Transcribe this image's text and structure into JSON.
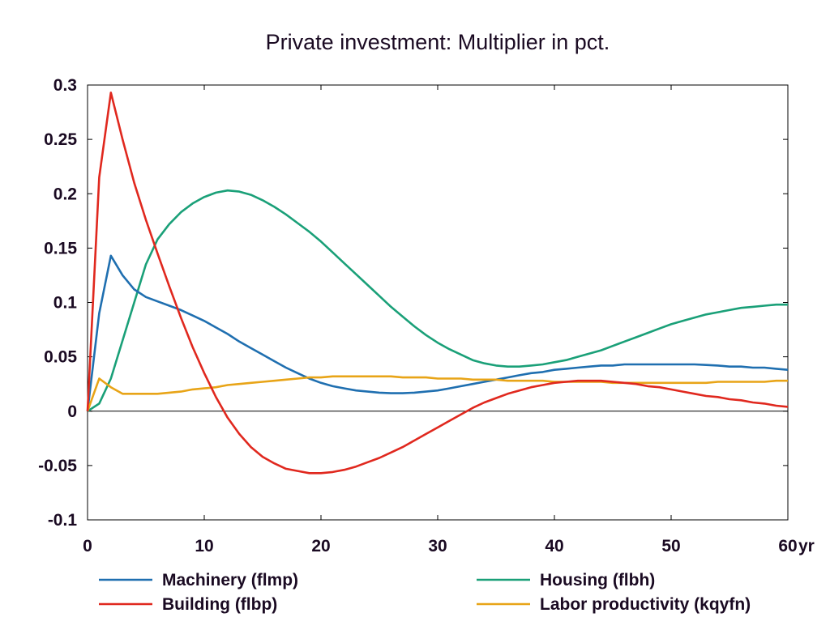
{
  "chart_data": {
    "type": "line",
    "title": "Private investment: Multiplier in pct.",
    "xlabel": "",
    "ylabel": "",
    "x_unit": "yr",
    "xlim": [
      0,
      60
    ],
    "ylim": [
      -0.1,
      0.3
    ],
    "x_ticks": [
      "0",
      "10",
      "20",
      "30",
      "40",
      "50",
      "60"
    ],
    "y_ticks": [
      "0.3",
      "0.25",
      "0.2",
      "0.15",
      "0.1",
      "0.05",
      "0",
      "-0.05",
      "-0.1"
    ],
    "grid": false,
    "legend_position": "bottom",
    "x": [
      0,
      1,
      2,
      3,
      4,
      5,
      6,
      7,
      8,
      9,
      10,
      11,
      12,
      13,
      14,
      15,
      16,
      17,
      18,
      19,
      20,
      21,
      22,
      23,
      24,
      25,
      26,
      27,
      28,
      29,
      30,
      31,
      32,
      33,
      34,
      35,
      36,
      37,
      38,
      39,
      40,
      41,
      42,
      43,
      44,
      45,
      46,
      47,
      48,
      49,
      50,
      51,
      52,
      53,
      54,
      55,
      56,
      57,
      58,
      59,
      60
    ],
    "series": [
      {
        "name": "Machinery (flmp)",
        "color": "#1f6fb0",
        "values": [
          0,
          0.09,
          0.143,
          0.125,
          0.112,
          0.105,
          0.101,
          0.097,
          0.093,
          0.088,
          0.083,
          0.077,
          0.071,
          0.064,
          0.058,
          0.052,
          0.046,
          0.04,
          0.035,
          0.03,
          0.026,
          0.023,
          0.021,
          0.019,
          0.018,
          0.017,
          0.0165,
          0.0165,
          0.017,
          0.018,
          0.019,
          0.021,
          0.023,
          0.025,
          0.027,
          0.029,
          0.031,
          0.033,
          0.035,
          0.036,
          0.038,
          0.039,
          0.04,
          0.041,
          0.042,
          0.042,
          0.043,
          0.043,
          0.043,
          0.043,
          0.043,
          0.043,
          0.043,
          0.0425,
          0.042,
          0.041,
          0.041,
          0.04,
          0.04,
          0.039,
          0.038
        ]
      },
      {
        "name": "Housing (flbh)",
        "color": "#1aa078",
        "values": [
          0,
          0.007,
          0.03,
          0.065,
          0.1,
          0.135,
          0.158,
          0.172,
          0.183,
          0.191,
          0.197,
          0.201,
          0.203,
          0.202,
          0.199,
          0.194,
          0.188,
          0.181,
          0.173,
          0.165,
          0.156,
          0.146,
          0.136,
          0.126,
          0.116,
          0.106,
          0.096,
          0.087,
          0.078,
          0.07,
          0.063,
          0.057,
          0.052,
          0.047,
          0.044,
          0.042,
          0.041,
          0.041,
          0.042,
          0.043,
          0.045,
          0.047,
          0.05,
          0.053,
          0.056,
          0.06,
          0.064,
          0.068,
          0.072,
          0.076,
          0.08,
          0.083,
          0.086,
          0.089,
          0.091,
          0.093,
          0.095,
          0.096,
          0.097,
          0.098,
          0.098
        ]
      },
      {
        "name": "Building (flbp)",
        "color": "#e0281e",
        "values": [
          0,
          0.215,
          0.293,
          0.25,
          0.21,
          0.176,
          0.145,
          0.115,
          0.086,
          0.059,
          0.035,
          0.013,
          -0.006,
          -0.021,
          -0.033,
          -0.042,
          -0.048,
          -0.053,
          -0.055,
          -0.057,
          -0.057,
          -0.056,
          -0.054,
          -0.051,
          -0.047,
          -0.043,
          -0.038,
          -0.033,
          -0.027,
          -0.021,
          -0.015,
          -0.009,
          -0.003,
          0.003,
          0.008,
          0.012,
          0.016,
          0.019,
          0.022,
          0.024,
          0.026,
          0.027,
          0.028,
          0.028,
          0.028,
          0.027,
          0.026,
          0.025,
          0.023,
          0.022,
          0.02,
          0.018,
          0.016,
          0.014,
          0.013,
          0.011,
          0.01,
          0.008,
          0.007,
          0.005,
          0.004
        ]
      },
      {
        "name": "Labor productivity (kqyfn)",
        "color": "#e8a417",
        "values": [
          0,
          0.03,
          0.022,
          0.016,
          0.016,
          0.016,
          0.016,
          0.017,
          0.018,
          0.02,
          0.021,
          0.022,
          0.024,
          0.025,
          0.026,
          0.027,
          0.028,
          0.029,
          0.03,
          0.031,
          0.031,
          0.032,
          0.032,
          0.032,
          0.032,
          0.032,
          0.032,
          0.031,
          0.031,
          0.031,
          0.03,
          0.03,
          0.03,
          0.029,
          0.029,
          0.029,
          0.028,
          0.028,
          0.028,
          0.028,
          0.027,
          0.027,
          0.027,
          0.027,
          0.027,
          0.026,
          0.026,
          0.026,
          0.026,
          0.026,
          0.026,
          0.026,
          0.026,
          0.026,
          0.027,
          0.027,
          0.027,
          0.027,
          0.027,
          0.028,
          0.028
        ]
      }
    ]
  }
}
